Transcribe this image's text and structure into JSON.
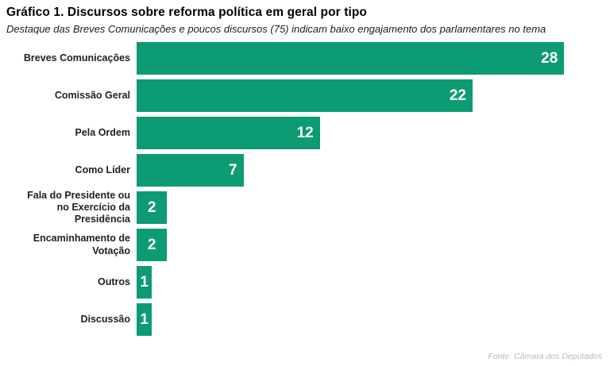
{
  "header": {
    "title": "Gráfico 1. Discursos sobre reforma política em geral por tipo",
    "subtitle": "Destaque das Breves Comunicações e poucos discursos (75) indicam baixo engajamento dos parlamentares no tema"
  },
  "footer": {
    "source": "Fonte: Câmara dos Deputados"
  },
  "colors": {
    "bar": "#0d9b73",
    "title_text": "#000000",
    "label_text": "#222222",
    "value_text": "#ffffff",
    "source_text": "#b9b9b9",
    "background": "#ffffff"
  },
  "chart_data": {
    "type": "bar",
    "orientation": "horizontal",
    "title": "Gráfico 1. Discursos sobre reforma política em geral por tipo",
    "subtitle": "Destaque das Breves Comunicações e poucos discursos (75) indicam baixo engajamento dos parlamentares no tema",
    "categories": [
      "Breves Comunicações",
      "Comissão Geral",
      "Pela Ordem",
      "Como Líder",
      "Fala do Presidente ou\nno Exercício da Presidência",
      "Encaminhamento de Votação",
      "Outros",
      "Discussão"
    ],
    "values": [
      28,
      22,
      12,
      7,
      2,
      2,
      1,
      1
    ],
    "xlabel": "",
    "ylabel": "",
    "xlim": [
      0,
      31
    ],
    "grid": false,
    "legend": false,
    "value_labels": "inside-end, white bold",
    "source": "Fonte: Câmara dos Deputados"
  }
}
